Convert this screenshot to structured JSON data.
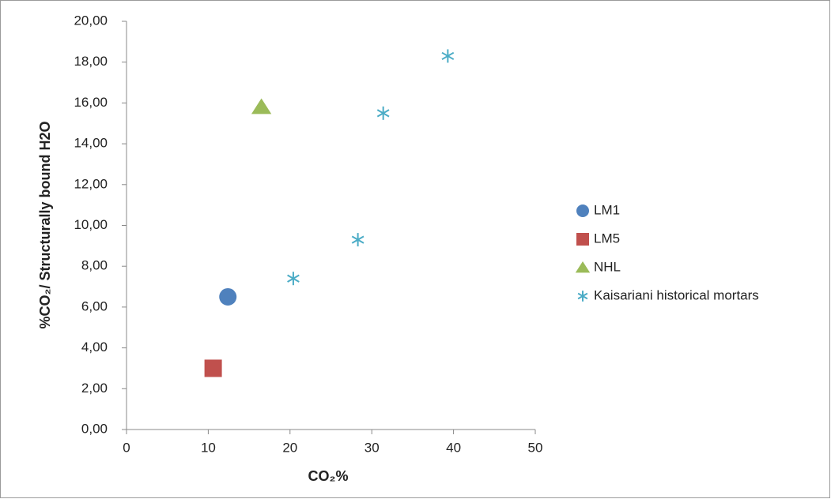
{
  "chart_data": {
    "type": "scatter",
    "xlabel": "CO₂%",
    "ylabel": "%CO₂/ Structurally bound H2O",
    "xlim": [
      0,
      50
    ],
    "xticks": [
      0,
      10,
      20,
      30,
      40,
      50
    ],
    "ylim": [
      0,
      20
    ],
    "yticks": [
      {
        "value": 0,
        "label": "0,00"
      },
      {
        "value": 2,
        "label": "2,00"
      },
      {
        "value": 4,
        "label": "4,00"
      },
      {
        "value": 6,
        "label": "6,00"
      },
      {
        "value": 8,
        "label": "8,00"
      },
      {
        "value": 10,
        "label": "10,00"
      },
      {
        "value": 12,
        "label": "12,00"
      },
      {
        "value": 14,
        "label": "14,00"
      },
      {
        "value": 16,
        "label": "16,00"
      },
      {
        "value": 18,
        "label": "18,00"
      },
      {
        "value": 20,
        "label": "20,00"
      }
    ],
    "grid": false,
    "legend": "right",
    "series": [
      {
        "name": "LM1",
        "color": "#4f81bd",
        "marker": "circle",
        "x": [
          12.4
        ],
        "values": [
          6.5
        ]
      },
      {
        "name": "LM5",
        "color": "#c0504d",
        "marker": "square",
        "x": [
          10.6
        ],
        "values": [
          3.0
        ]
      },
      {
        "name": "NHL",
        "color": "#9bbb59",
        "marker": "triangle",
        "x": [
          16.5
        ],
        "values": [
          15.8
        ]
      },
      {
        "name": "Kaisariani historical mortars",
        "color": "#4bacc6",
        "marker": "star",
        "x": [
          20.4,
          28.3,
          31.4,
          39.3
        ],
        "values": [
          7.4,
          9.3,
          15.5,
          18.3
        ]
      }
    ]
  }
}
